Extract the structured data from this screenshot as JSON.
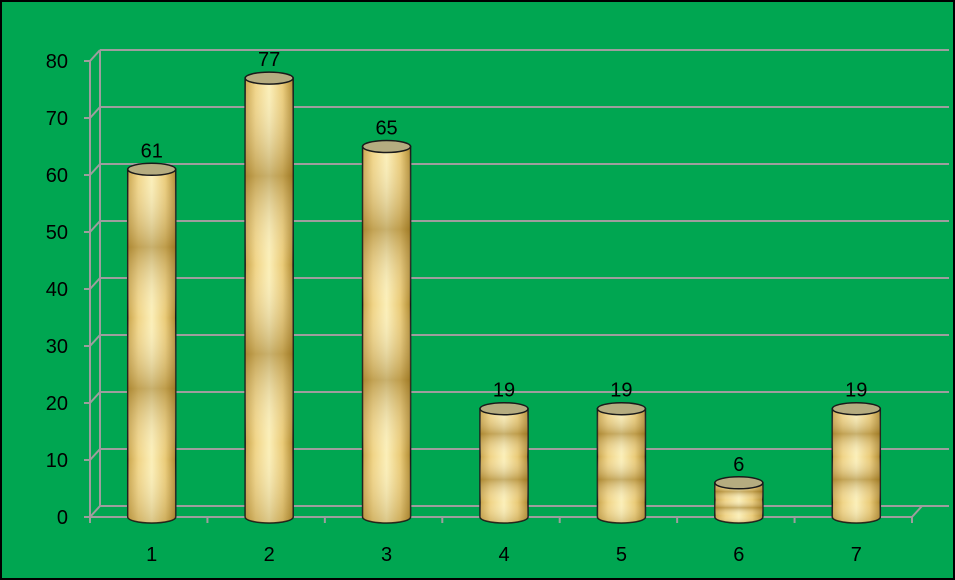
{
  "colors": {
    "background": "#00A651",
    "gridline": "#9E9E9E",
    "bar_light": "#F8E6A0",
    "bar_dark": "#B8902E",
    "bar_top": "#B5AC80",
    "text": "#000000"
  },
  "chart_data": {
    "type": "bar",
    "style": "3d-cylinder",
    "categories": [
      "1",
      "2",
      "3",
      "4",
      "5",
      "6",
      "7"
    ],
    "values": [
      61,
      77,
      65,
      19,
      19,
      6,
      19
    ],
    "data_labels": [
      "61",
      "77",
      "65",
      "19",
      "19",
      "6",
      "19"
    ],
    "y_ticks": [
      "0",
      "10",
      "20",
      "30",
      "40",
      "50",
      "60",
      "70",
      "80"
    ],
    "ylim": [
      0,
      80
    ],
    "grid": true,
    "legend": "none",
    "title": "",
    "xlabel": "",
    "ylabel": ""
  }
}
